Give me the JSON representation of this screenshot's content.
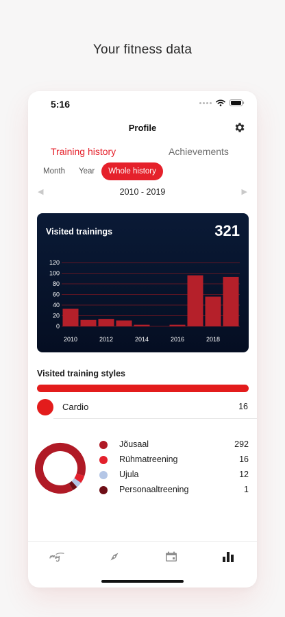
{
  "heading": "Your fitness data",
  "status": {
    "time": "5:16"
  },
  "nav": {
    "title": "Profile",
    "settings_icon": "gear-icon"
  },
  "tabs": [
    {
      "label": "Training history",
      "active": true
    },
    {
      "label": "Achievements",
      "active": false
    }
  ],
  "ranges": [
    {
      "label": "Month",
      "active": false
    },
    {
      "label": "Year",
      "active": false
    },
    {
      "label": "Whole history",
      "active": true
    }
  ],
  "period": {
    "label": "2010 - 2019"
  },
  "chart": {
    "title": "Visited trainings",
    "total": "321"
  },
  "chart_data": {
    "type": "bar",
    "title": "Visited trainings",
    "x": [
      2010,
      2011,
      2012,
      2013,
      2014,
      2015,
      2016,
      2017,
      2018,
      2019
    ],
    "values": [
      33,
      12,
      14,
      11,
      3,
      0,
      3,
      96,
      56,
      93
    ],
    "xticks": [
      "2010",
      "2012",
      "2014",
      "2016",
      "2018"
    ],
    "yticks": [
      "0",
      "20",
      "40",
      "60",
      "80",
      "100",
      "120"
    ],
    "ylim": [
      0,
      120
    ],
    "grid": true,
    "colors": {
      "bar": "#b5202a",
      "grid": "#7d1722",
      "tick": "#ffffff"
    }
  },
  "styles_section": {
    "title": "Visited training styles",
    "bar_color": "#e31c1c",
    "items": [
      {
        "name": "Cardio",
        "count": "16",
        "color": "#e31c1c"
      }
    ]
  },
  "legend": [
    {
      "name": "Jõusaal",
      "value": "292",
      "color": "#b01a26"
    },
    {
      "name": "Rühmatreening",
      "value": "16",
      "color": "#e3202c"
    },
    {
      "name": "Ujula",
      "value": "12",
      "color": "#b4c6e6"
    },
    {
      "name": "Personaaltreening",
      "value": "1",
      "color": "#6e0e16"
    }
  ],
  "bottom_nav": [
    {
      "icon": "my-logo-icon",
      "active": false
    },
    {
      "icon": "compass-icon",
      "active": false
    },
    {
      "icon": "calendar-icon",
      "active": false
    },
    {
      "icon": "stats-icon",
      "active": true
    }
  ]
}
